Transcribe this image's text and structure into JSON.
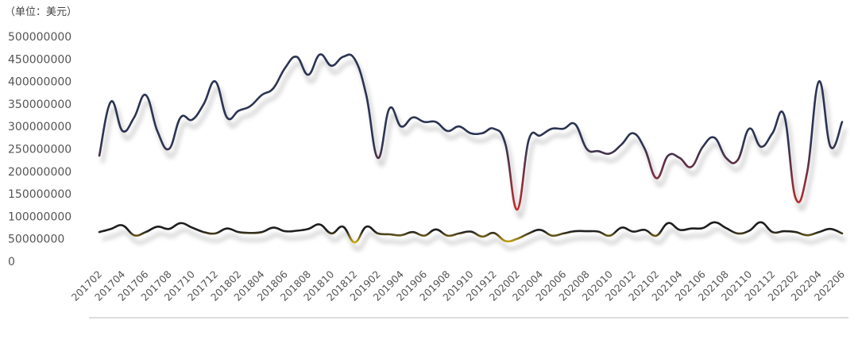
{
  "chart_data": {
    "type": "line",
    "unit_label": "（单位：美元）",
    "ylim": [
      0,
      500000000
    ],
    "yticks": [
      "500000000",
      "450000000",
      "400000000",
      "350000000",
      "300000000",
      "250000000",
      "200000000",
      "150000000",
      "100000000",
      "50000000",
      "0"
    ],
    "xticks": [
      "201702",
      "201704",
      "201706",
      "201708",
      "201710",
      "201712",
      "201802",
      "201804",
      "201806",
      "201808",
      "201810",
      "201812",
      "201902",
      "201904",
      "201906",
      "201908",
      "201910",
      "201912",
      "202002",
      "202004",
      "202006",
      "202008",
      "202010",
      "202012",
      "202102",
      "202104",
      "202106",
      "202108",
      "202110",
      "202112",
      "202202",
      "202204",
      "202206"
    ],
    "x": [
      "201702",
      "201703",
      "201704",
      "201705",
      "201706",
      "201707",
      "201708",
      "201709",
      "201710",
      "201711",
      "201712",
      "201801",
      "201802",
      "201803",
      "201804",
      "201805",
      "201806",
      "201807",
      "201808",
      "201809",
      "201810",
      "201811",
      "201812",
      "201901",
      "201902",
      "201903",
      "201904",
      "201905",
      "201906",
      "201907",
      "201908",
      "201909",
      "201910",
      "201911",
      "201912",
      "202001",
      "202002",
      "202003",
      "202004",
      "202005",
      "202006",
      "202007",
      "202008",
      "202009",
      "202010",
      "202011",
      "202012",
      "202101",
      "202102",
      "202103",
      "202104",
      "202105",
      "202106",
      "202107",
      "202108",
      "202109",
      "202110",
      "202111",
      "202112",
      "202201",
      "202202",
      "202203",
      "202204",
      "202205",
      "202206"
    ],
    "series": [
      {
        "colors": [
          "#2b3452",
          "#cc2b2b"
        ],
        "values": [
          235000000,
          355000000,
          290000000,
          320000000,
          370000000,
          290000000,
          250000000,
          320000000,
          315000000,
          350000000,
          400000000,
          320000000,
          335000000,
          345000000,
          370000000,
          385000000,
          430000000,
          455000000,
          415000000,
          460000000,
          435000000,
          455000000,
          450000000,
          370000000,
          230000000,
          340000000,
          300000000,
          320000000,
          310000000,
          310000000,
          290000000,
          300000000,
          285000000,
          285000000,
          295000000,
          260000000,
          115000000,
          270000000,
          280000000,
          295000000,
          295000000,
          305000000,
          250000000,
          245000000,
          240000000,
          260000000,
          285000000,
          250000000,
          185000000,
          235000000,
          230000000,
          210000000,
          255000000,
          275000000,
          230000000,
          225000000,
          295000000,
          255000000,
          285000000,
          325000000,
          140000000,
          200000000,
          400000000,
          255000000,
          310000000
        ]
      },
      {
        "colors": [
          "#1e1e1e",
          "#f2c511"
        ],
        "values": [
          65000000,
          72000000,
          80000000,
          58000000,
          65000000,
          77000000,
          72000000,
          85000000,
          75000000,
          65000000,
          62000000,
          73000000,
          65000000,
          63000000,
          65000000,
          75000000,
          67000000,
          68000000,
          72000000,
          82000000,
          62000000,
          77000000,
          42000000,
          77000000,
          62000000,
          60000000,
          58000000,
          65000000,
          57000000,
          71000000,
          57000000,
          62000000,
          66000000,
          55000000,
          63000000,
          45000000,
          50000000,
          62000000,
          70000000,
          57000000,
          62000000,
          67000000,
          67000000,
          66000000,
          57000000,
          75000000,
          66000000,
          70000000,
          57000000,
          85000000,
          70000000,
          73000000,
          74000000,
          87000000,
          74000000,
          62000000,
          68000000,
          87000000,
          65000000,
          67000000,
          65000000,
          58000000,
          65000000,
          72000000,
          62000000
        ]
      }
    ]
  }
}
